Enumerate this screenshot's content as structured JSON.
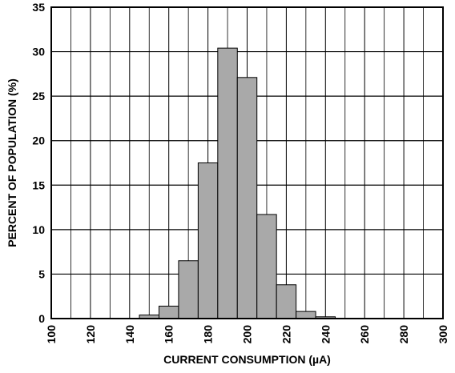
{
  "chart_data": {
    "type": "bar",
    "title": "",
    "xlabel": "CURRENT CONSUMPTION (µA)",
    "ylabel": "PERCENT OF POPULATION (%)",
    "xlim": [
      100,
      300
    ],
    "ylim": [
      0,
      35
    ],
    "x_ticks": [
      "100",
      "120",
      "140",
      "160",
      "180",
      "200",
      "220",
      "240",
      "260",
      "280",
      "300"
    ],
    "y_ticks": [
      "0",
      "5",
      "10",
      "15",
      "20",
      "25",
      "30",
      "35"
    ],
    "bin_width": 10,
    "bins": [
      {
        "start": 145,
        "end": 155,
        "value": 0.4
      },
      {
        "start": 155,
        "end": 165,
        "value": 1.4
      },
      {
        "start": 165,
        "end": 175,
        "value": 6.5
      },
      {
        "start": 175,
        "end": 185,
        "value": 17.5
      },
      {
        "start": 185,
        "end": 195,
        "value": 30.4
      },
      {
        "start": 195,
        "end": 205,
        "value": 27.1
      },
      {
        "start": 205,
        "end": 215,
        "value": 11.7
      },
      {
        "start": 215,
        "end": 225,
        "value": 3.8
      },
      {
        "start": 225,
        "end": 235,
        "value": 0.8
      },
      {
        "start": 235,
        "end": 245,
        "value": 0.2
      }
    ],
    "grid": true,
    "bar_color": "#a9a9a9",
    "legend": "none"
  }
}
